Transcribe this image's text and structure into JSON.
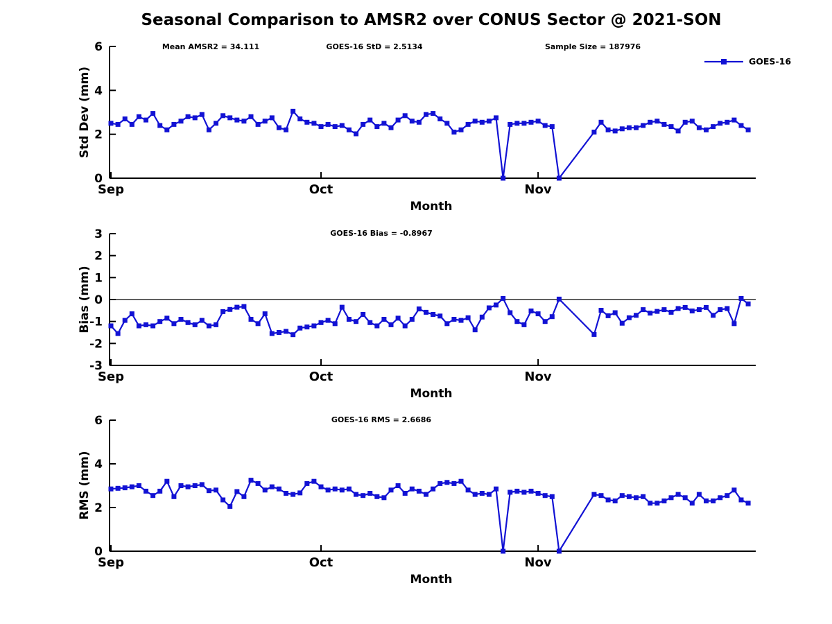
{
  "title": "Seasonal Comparison to AMSR2 over CONUS Sector @ 2021-SON",
  "xlabel": "Month",
  "xticks": {
    "labels": [
      "Sep",
      "Oct",
      "Nov"
    ],
    "days": [
      0,
      30,
      61
    ]
  },
  "legend": {
    "label": "GOES-16"
  },
  "colors": {
    "line": "#1212d4",
    "axis": "#000000"
  },
  "chart_data": [
    {
      "type": "line",
      "series": "GOES-16",
      "ylabel": "Std Dev (mm)",
      "ylim": [
        0,
        6
      ],
      "yticks": [
        0,
        2,
        4,
        6
      ],
      "annotations": [
        "Mean AMSR2 = 34.111",
        "GOES-16 StD = 2.5134",
        "Sample Size = 187976"
      ],
      "x": [
        0,
        1,
        2,
        3,
        4,
        5,
        6,
        7,
        8,
        9,
        10,
        11,
        12,
        13,
        14,
        15,
        16,
        17,
        18,
        19,
        20,
        21,
        22,
        23,
        24,
        25,
        26,
        27,
        28,
        29,
        30,
        31,
        32,
        33,
        34,
        35,
        36,
        37,
        38,
        39,
        40,
        41,
        42,
        43,
        44,
        45,
        46,
        47,
        48,
        49,
        50,
        51,
        52,
        53,
        54,
        55,
        56,
        57,
        58,
        59,
        60,
        61,
        62,
        63,
        64,
        69,
        70,
        71,
        72,
        73,
        74,
        75,
        76,
        77,
        78,
        79,
        80,
        81,
        82,
        83,
        84,
        85,
        86,
        87,
        88,
        89,
        90,
        91
      ],
      "values": [
        2.5,
        2.45,
        2.7,
        2.45,
        2.8,
        2.65,
        2.95,
        2.4,
        2.2,
        2.45,
        2.6,
        2.8,
        2.75,
        2.9,
        2.2,
        2.5,
        2.85,
        2.75,
        2.65,
        2.6,
        2.8,
        2.45,
        2.6,
        2.75,
        2.3,
        2.2,
        3.05,
        2.7,
        2.55,
        2.5,
        2.35,
        2.45,
        2.35,
        2.4,
        2.2,
        2.02,
        2.45,
        2.65,
        2.35,
        2.5,
        2.3,
        2.65,
        2.85,
        2.6,
        2.55,
        2.9,
        2.95,
        2.7,
        2.5,
        2.1,
        2.2,
        2.45,
        2.6,
        2.55,
        2.6,
        2.75,
        0,
        2.45,
        2.5,
        2.5,
        2.55,
        2.6,
        2.4,
        2.35,
        0,
        2.1,
        2.55,
        2.2,
        2.15,
        2.25,
        2.3,
        2.3,
        2.4,
        2.55,
        2.6,
        2.45,
        2.35,
        2.15,
        2.55,
        2.6,
        2.3,
        2.2,
        2.35,
        2.5,
        2.55,
        2.65,
        2.4,
        2.2
      ]
    },
    {
      "type": "line",
      "series": "GOES-16",
      "ylabel": "Bias (mm)",
      "ylim": [
        -3,
        3
      ],
      "yticks": [
        -3,
        -2,
        -1,
        0,
        1,
        2,
        3
      ],
      "zero_ref_line": true,
      "annotations": [
        "GOES-16 Bias = -0.8967"
      ],
      "x": [
        0,
        1,
        2,
        3,
        4,
        5,
        6,
        7,
        8,
        9,
        10,
        11,
        12,
        13,
        14,
        15,
        16,
        17,
        18,
        19,
        20,
        21,
        22,
        23,
        24,
        25,
        26,
        27,
        28,
        29,
        30,
        31,
        32,
        33,
        34,
        35,
        36,
        37,
        38,
        39,
        40,
        41,
        42,
        43,
        44,
        45,
        46,
        47,
        48,
        49,
        50,
        51,
        52,
        53,
        54,
        55,
        56,
        57,
        58,
        59,
        60,
        61,
        62,
        63,
        64,
        69,
        70,
        71,
        72,
        73,
        74,
        75,
        76,
        77,
        78,
        79,
        80,
        81,
        82,
        83,
        84,
        85,
        86,
        87,
        88,
        89,
        90,
        91
      ],
      "values": [
        -1.2,
        -1.55,
        -0.95,
        -0.65,
        -1.2,
        -1.15,
        -1.2,
        -1.0,
        -0.85,
        -1.1,
        -0.9,
        -1.05,
        -1.15,
        -0.95,
        -1.2,
        -1.15,
        -0.55,
        -0.45,
        -0.35,
        -0.32,
        -0.9,
        -1.1,
        -0.65,
        -1.55,
        -1.5,
        -1.45,
        -1.6,
        -1.3,
        -1.25,
        -1.2,
        -1.05,
        -0.95,
        -1.1,
        -0.35,
        -0.9,
        -1.0,
        -0.68,
        -1.05,
        -1.2,
        -0.9,
        -1.15,
        -0.85,
        -1.2,
        -0.9,
        -0.43,
        -0.58,
        -0.68,
        -0.75,
        -1.1,
        -0.9,
        -0.95,
        -0.83,
        -1.38,
        -0.8,
        -0.38,
        -0.25,
        0.05,
        -0.6,
        -1.0,
        -1.15,
        -0.52,
        -0.65,
        -1.0,
        -0.78,
        0.02,
        -1.59,
        -0.49,
        -0.74,
        -0.6,
        -1.08,
        -0.83,
        -0.72,
        -0.46,
        -0.62,
        -0.54,
        -0.46,
        -0.58,
        -0.41,
        -0.36,
        -0.52,
        -0.46,
        -0.36,
        -0.72,
        -0.46,
        -0.41,
        -1.1,
        0.05,
        -0.2
      ]
    },
    {
      "type": "line",
      "series": "GOES-16",
      "ylabel": "RMS (mm)",
      "ylim": [
        0,
        6
      ],
      "yticks": [
        0,
        2,
        4,
        6
      ],
      "annotations": [
        "GOES-16 RMS = 2.6686"
      ],
      "x": [
        0,
        1,
        2,
        3,
        4,
        5,
        6,
        7,
        8,
        9,
        10,
        11,
        12,
        13,
        14,
        15,
        16,
        17,
        18,
        19,
        20,
        21,
        22,
        23,
        24,
        25,
        26,
        27,
        28,
        29,
        30,
        31,
        32,
        33,
        34,
        35,
        36,
        37,
        38,
        39,
        40,
        41,
        42,
        43,
        44,
        45,
        46,
        47,
        48,
        49,
        50,
        51,
        52,
        53,
        54,
        55,
        56,
        57,
        58,
        59,
        60,
        61,
        62,
        63,
        64,
        69,
        70,
        71,
        72,
        73,
        74,
        75,
        76,
        77,
        78,
        79,
        80,
        81,
        82,
        83,
        84,
        85,
        86,
        87,
        88,
        89,
        90,
        91
      ],
      "values": [
        2.85,
        2.88,
        2.9,
        2.95,
        3.0,
        2.75,
        2.55,
        2.75,
        3.2,
        2.5,
        3.0,
        2.95,
        3.0,
        3.05,
        2.77,
        2.8,
        2.35,
        2.05,
        2.73,
        2.5,
        3.25,
        3.1,
        2.8,
        2.95,
        2.85,
        2.65,
        2.6,
        2.67,
        3.1,
        3.2,
        2.95,
        2.8,
        2.85,
        2.8,
        2.85,
        2.6,
        2.55,
        2.65,
        2.5,
        2.45,
        2.8,
        3.0,
        2.65,
        2.85,
        2.75,
        2.6,
        2.85,
        3.1,
        3.15,
        3.1,
        3.2,
        2.8,
        2.6,
        2.65,
        2.6,
        2.85,
        0,
        2.7,
        2.75,
        2.7,
        2.75,
        2.65,
        2.55,
        2.5,
        0,
        2.6,
        2.55,
        2.35,
        2.3,
        2.55,
        2.5,
        2.45,
        2.5,
        2.2,
        2.2,
        2.3,
        2.45,
        2.6,
        2.45,
        2.2,
        2.6,
        2.3,
        2.3,
        2.45,
        2.55,
        2.8,
        2.35,
        2.2
      ]
    }
  ]
}
